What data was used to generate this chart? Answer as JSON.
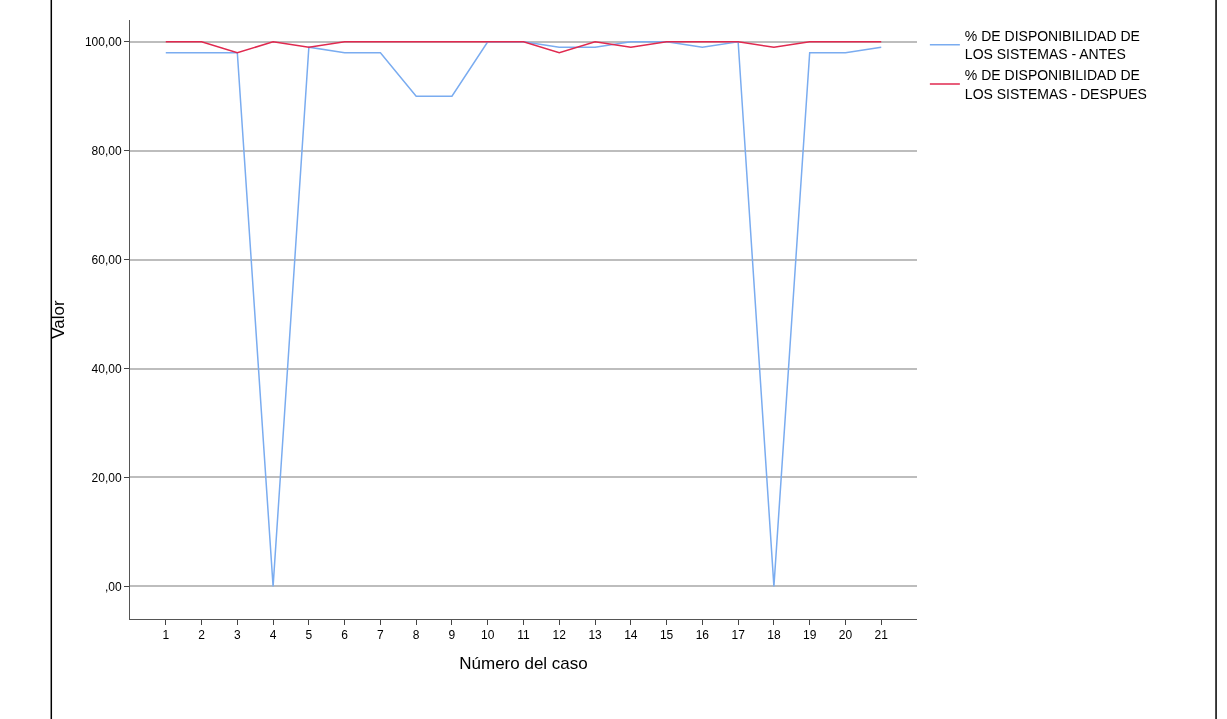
{
  "chart_data": {
    "type": "line",
    "xlabel": "Número del caso",
    "ylabel": "Valor",
    "x": [
      1,
      2,
      3,
      4,
      5,
      6,
      7,
      8,
      9,
      10,
      11,
      12,
      13,
      14,
      15,
      16,
      17,
      18,
      19,
      20,
      21
    ],
    "series": [
      {
        "name": "% DE DISPONIBILIDAD DE LOS SISTEMAS - ANTES",
        "color": "#7aacf0",
        "values": [
          98,
          98,
          98,
          0,
          99,
          98,
          98,
          90,
          90,
          100,
          100,
          99,
          99,
          100,
          100,
          99,
          100,
          0,
          98,
          98,
          99
        ]
      },
      {
        "name": "% DE DISPONIBILIDAD DE LOS SISTEMAS - DESPUES",
        "color": "#e0294f",
        "values": [
          100,
          100,
          98,
          100,
          99,
          100,
          100,
          100,
          100,
          100,
          100,
          98,
          100,
          99,
          100,
          100,
          100,
          99,
          100,
          100,
          100
        ]
      }
    ],
    "xlim": [
      0,
      22
    ],
    "xticks": [
      1,
      2,
      3,
      4,
      5,
      6,
      7,
      8,
      9,
      10,
      11,
      12,
      13,
      14,
      15,
      16,
      17,
      18,
      19,
      20,
      21
    ],
    "ylim": [
      -6,
      104
    ],
    "yticks": [
      {
        "value": 0,
        "label": ",00"
      },
      {
        "value": 20,
        "label": "20,00"
      },
      {
        "value": 40,
        "label": "40,00"
      },
      {
        "value": 60,
        "label": "60,00"
      },
      {
        "value": 80,
        "label": "80,00"
      },
      {
        "value": 100,
        "label": "100,00"
      }
    ],
    "grid": "y",
    "legend": "top right",
    "marker": "none",
    "line_style": "solid"
  }
}
